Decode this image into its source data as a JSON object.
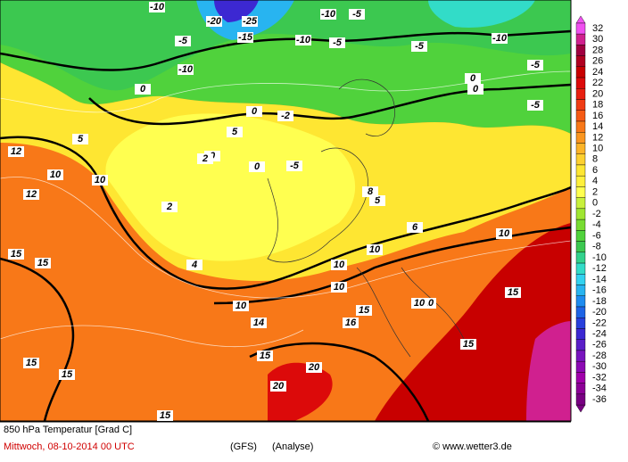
{
  "header": {
    "title": "850 hPa Temperatur [Grad C]",
    "date": "Mittwoch, 08-10-2014  00 UTC",
    "model": "(GFS)",
    "run": "(Analyse)",
    "source": "© www.wetter3.de"
  },
  "colorbar": {
    "levels": [
      32,
      30,
      28,
      26,
      24,
      22,
      20,
      18,
      16,
      14,
      12,
      10,
      8,
      6,
      4,
      2,
      0,
      -2,
      -4,
      -6,
      -8,
      -10,
      -12,
      -14,
      -16,
      -18,
      -20,
      -22,
      -24,
      -26,
      -28,
      -30,
      -32,
      -34,
      -36
    ],
    "colors": [
      "#f050f0",
      "#d0208f",
      "#a00040",
      "#b00020",
      "#c80000",
      "#dc0a0a",
      "#e82010",
      "#f03c14",
      "#f55a14",
      "#f87818",
      "#fa9620",
      "#fcb428",
      "#fdd030",
      "#fee632",
      "#fff03c",
      "#ffff50",
      "#c8f03c",
      "#a0e632",
      "#78dc32",
      "#50d23c",
      "#3cc850",
      "#32d28c",
      "#32dcc8",
      "#32d2f0",
      "#28b4f0",
      "#1e8cf0",
      "#1e64e6",
      "#2840dc",
      "#3c28d2",
      "#5a1ec8",
      "#7814be",
      "#8c0ab4",
      "#a000aa",
      "#8c0096",
      "#780082"
    ]
  },
  "map_labels": [
    "-10",
    "-5",
    "-20",
    "-25",
    "-15",
    "-10",
    "-10",
    "-5",
    "-10",
    "-5",
    "-5",
    "-10",
    "-5",
    "0",
    "0",
    "-5",
    "0",
    "0",
    "5",
    "0",
    "0",
    "-5",
    "5",
    "10",
    "10",
    "15",
    "15",
    "10",
    "5",
    "10",
    "15",
    "10",
    "10",
    "15",
    "20",
    "20",
    "15",
    "15",
    "15",
    "15",
    "10",
    "10",
    "10",
    "15",
    "12",
    "12",
    "14",
    "16",
    "4",
    "2",
    "2",
    "-2",
    "8",
    "6"
  ]
}
